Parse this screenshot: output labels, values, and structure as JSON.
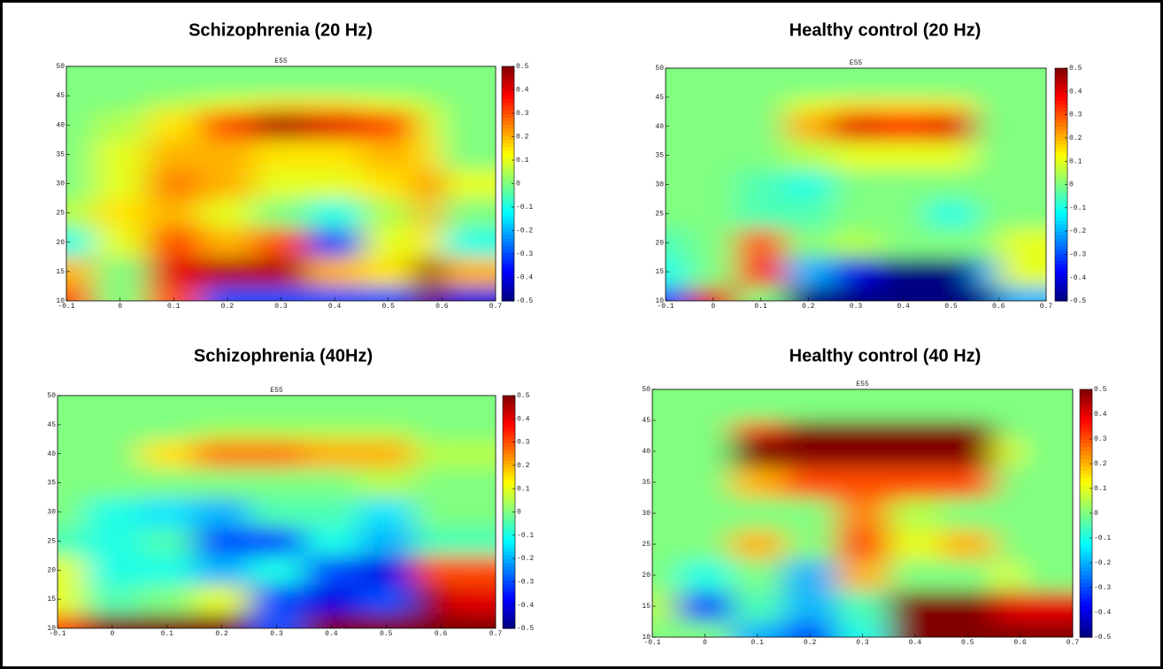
{
  "chart_data": [
    {
      "type": "heatmap",
      "title": "Schizophrenia (20 Hz)",
      "subtitle": "E55",
      "x": [
        -0.1,
        0,
        0.1,
        0.2,
        0.3,
        0.4,
        0.5,
        0.6,
        0.7
      ],
      "y": [
        10,
        15,
        20,
        25,
        30,
        35,
        40,
        45,
        50
      ],
      "z": [
        [
          0.3,
          0,
          0.3,
          -0.3,
          -0.3,
          -0.3,
          -0.3,
          0.5,
          -0.4
        ],
        [
          0.2,
          0,
          0.4,
          0.45,
          0.45,
          0.2,
          0.15,
          0.5,
          0.2
        ],
        [
          -0.1,
          0.1,
          0.3,
          0.2,
          0.3,
          -0.3,
          0.1,
          0.15,
          -0.1
        ],
        [
          0.05,
          0.15,
          0.2,
          0.1,
          0,
          -0.1,
          0.05,
          0.2,
          0
        ],
        [
          0,
          0.1,
          0.25,
          0.2,
          0.1,
          0.1,
          0.15,
          0.25,
          0.1
        ],
        [
          0,
          0.1,
          0.2,
          0.2,
          0.15,
          0.15,
          0.2,
          0.15,
          0
        ],
        [
          0,
          0.05,
          0.15,
          0.3,
          0.45,
          0.4,
          0.3,
          0.1,
          0
        ],
        [
          0,
          0,
          0.05,
          0.1,
          0.15,
          0.15,
          0.1,
          0.05,
          0
        ],
        [
          0,
          0,
          0,
          0,
          0,
          0,
          0,
          0,
          0
        ]
      ],
      "xlim": [
        -0.1,
        0.7
      ],
      "ylim": [
        10,
        50
      ],
      "xticks": [
        -0.1,
        0,
        0.1,
        0.2,
        0.3,
        0.4,
        0.5,
        0.6,
        0.7
      ],
      "yticks": [
        10,
        15,
        20,
        25,
        30,
        35,
        40,
        45,
        50
      ],
      "clim": [
        -0.5,
        0.5
      ],
      "cticks": [
        0.5,
        0.4,
        0.3,
        0.2,
        0.1,
        0,
        -0.1,
        -0.2,
        -0.3,
        -0.4,
        -0.5
      ],
      "colormap": "jet"
    },
    {
      "type": "heatmap",
      "title": "Healthy control (20 Hz)",
      "subtitle": "E55",
      "x": [
        -0.1,
        0,
        0.1,
        0.2,
        0.3,
        0.4,
        0.5,
        0.6,
        0.7
      ],
      "y": [
        10,
        15,
        20,
        25,
        30,
        35,
        40,
        45,
        50
      ],
      "z": [
        [
          -0.3,
          0.4,
          0,
          -0.5,
          -0.5,
          -0.5,
          -0.5,
          -0.5,
          -0.2
        ],
        [
          -0.1,
          0,
          0.35,
          -0.2,
          -0.4,
          -0.5,
          -0.5,
          -0.2,
          0.1
        ],
        [
          -0.05,
          0,
          0.3,
          0,
          0.05,
          0,
          0,
          0,
          0.1
        ],
        [
          0,
          0,
          -0.05,
          -0.05,
          0,
          0,
          -0.1,
          0,
          0
        ],
        [
          0,
          0,
          -0.05,
          -0.1,
          0,
          0,
          0,
          0,
          0
        ],
        [
          0,
          0,
          0,
          0.05,
          0.1,
          0.1,
          0.1,
          0,
          0
        ],
        [
          0,
          0,
          0,
          0.2,
          0.4,
          0.35,
          0.4,
          0,
          0
        ],
        [
          0,
          0,
          0,
          0.1,
          0.15,
          0.15,
          0.15,
          0,
          0
        ],
        [
          0,
          0,
          0,
          0,
          0,
          0,
          0,
          0,
          0
        ]
      ],
      "xlim": [
        -0.1,
        0.7
      ],
      "ylim": [
        10,
        50
      ],
      "xticks": [
        -0.1,
        0,
        0.1,
        0.2,
        0.3,
        0.4,
        0.5,
        0.6,
        0.7
      ],
      "yticks": [
        10,
        15,
        20,
        25,
        30,
        35,
        40,
        45,
        50
      ],
      "clim": [
        -0.5,
        0.5
      ],
      "cticks": [
        0.5,
        0.4,
        0.3,
        0.2,
        0.1,
        0,
        -0.1,
        -0.2,
        -0.3,
        -0.4,
        -0.5
      ],
      "colormap": "jet"
    },
    {
      "type": "heatmap",
      "title": "Schizophrenia (40Hz)",
      "subtitle": "E55",
      "x": [
        -0.1,
        0,
        0.1,
        0.2,
        0.3,
        0.4,
        0.5,
        0.6,
        0.7
      ],
      "y": [
        10,
        15,
        20,
        25,
        30,
        35,
        40,
        45,
        50
      ],
      "z": [
        [
          0.3,
          0.5,
          0.5,
          0.5,
          -0.3,
          0.5,
          0.5,
          0.5,
          0.5
        ],
        [
          0.1,
          -0.05,
          0,
          0.1,
          -0.3,
          -0.4,
          -0.3,
          0.5,
          0.4
        ],
        [
          0.1,
          -0.1,
          -0.1,
          -0.2,
          -0.1,
          -0.3,
          -0.4,
          0.3,
          0.3
        ],
        [
          -0.05,
          -0.1,
          -0.05,
          -0.3,
          -0.3,
          -0.1,
          -0.2,
          -0.05,
          -0.05
        ],
        [
          0,
          -0.1,
          -0.15,
          -0.2,
          -0.05,
          -0.05,
          -0.15,
          0,
          0
        ],
        [
          0,
          0,
          0,
          0,
          0,
          0,
          0.05,
          0,
          0
        ],
        [
          0,
          0,
          0.15,
          0.25,
          0.25,
          0.2,
          0.2,
          0.05,
          0.05
        ],
        [
          0,
          0,
          0,
          0.05,
          0.05,
          0.05,
          0.05,
          0,
          0
        ],
        [
          0,
          0,
          0,
          0,
          0,
          0,
          0,
          0,
          0
        ]
      ],
      "xlim": [
        -0.1,
        0.7
      ],
      "ylim": [
        10,
        50
      ],
      "xticks": [
        -0.1,
        0,
        0.1,
        0.2,
        0.3,
        0.4,
        0.5,
        0.6,
        0.7
      ],
      "yticks": [
        10,
        15,
        20,
        25,
        30,
        35,
        40,
        45,
        50
      ],
      "clim": [
        -0.5,
        0.5
      ],
      "cticks": [
        0.5,
        0.4,
        0.3,
        0.2,
        0.1,
        0,
        -0.1,
        -0.2,
        -0.3,
        -0.4,
        -0.5
      ],
      "colormap": "jet"
    },
    {
      "type": "heatmap",
      "title": "Healthy control (40 Hz)",
      "subtitle": "E55",
      "x": [
        -0.1,
        0,
        0.1,
        0.2,
        0.3,
        0.4,
        0.5,
        0.6,
        0.7
      ],
      "y": [
        10,
        15,
        20,
        25,
        30,
        35,
        40,
        45,
        50
      ],
      "z": [
        [
          0,
          0,
          -0.2,
          -0.3,
          -0.1,
          0.5,
          0.5,
          0.5,
          0.5
        ],
        [
          0.05,
          -0.3,
          -0.05,
          -0.2,
          -0.05,
          0.5,
          0.5,
          0.4,
          0.4
        ],
        [
          0,
          -0.1,
          0,
          -0.2,
          0.2,
          0,
          0,
          0.1,
          0
        ],
        [
          0,
          0,
          0.2,
          0,
          0.3,
          0.1,
          0.2,
          0,
          0
        ],
        [
          0,
          0,
          0,
          0,
          0.25,
          0.05,
          0,
          0,
          0
        ],
        [
          0,
          0,
          0.2,
          0.3,
          0.3,
          0.3,
          0.3,
          0,
          0
        ],
        [
          0,
          0,
          0.5,
          0.5,
          0.5,
          0.5,
          0.5,
          0.1,
          0
        ],
        [
          0,
          0,
          0.3,
          0.5,
          0.5,
          0.5,
          0.5,
          0,
          0
        ],
        [
          0,
          0,
          0,
          0,
          0,
          0,
          0,
          0,
          0
        ]
      ],
      "xlim": [
        -0.1,
        0.7
      ],
      "ylim": [
        10,
        50
      ],
      "xticks": [
        -0.1,
        0,
        0.1,
        0.2,
        0.3,
        0.4,
        0.5,
        0.6,
        0.7
      ],
      "yticks": [
        10,
        15,
        20,
        25,
        30,
        35,
        40,
        45,
        50
      ],
      "clim": [
        -0.5,
        0.5
      ],
      "cticks": [
        0.5,
        0.4,
        0.3,
        0.2,
        0.1,
        0,
        -0.1,
        -0.2,
        -0.3,
        -0.4,
        -0.5
      ],
      "colormap": "jet"
    }
  ]
}
